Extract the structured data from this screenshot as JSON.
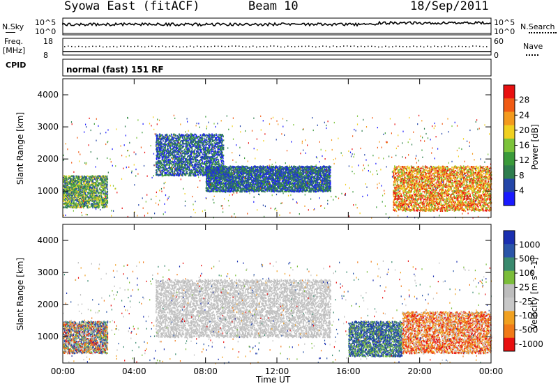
{
  "header": {
    "station": "Syowa East (fitACF)",
    "beam": "Beam 10",
    "date": "18/Sep/2011"
  },
  "top_panels": {
    "nsky_label": "N.Sky",
    "nsearch_label": "N.Search",
    "nsky_ticks": [
      "10^5",
      "10^0"
    ],
    "nsearch_ticks": [
      "10^5",
      "10^0"
    ],
    "freq_label": "Freq.",
    "freq_unit": "[MHz]",
    "freq_ticks": [
      "18",
      "8"
    ],
    "nave_label": "Nave",
    "nave_ticks": [
      "60",
      "0"
    ],
    "cpid_label": "CPID",
    "cpid_value": "normal (fast) 151 RF"
  },
  "colors": {
    "power_scale": [
      "#1a1aff",
      "#2446a8",
      "#2e7d4e",
      "#3a9a3a",
      "#7cc33a",
      "#f0d020",
      "#f39a1e",
      "#f05a14",
      "#e81010"
    ],
    "velocity_scale": [
      "#1a2fb0",
      "#2a55a8",
      "#3a8a6e",
      "#7bbd3a",
      "#bdbdbd",
      "#c8c8c8",
      "#f0a020",
      "#f07a18",
      "#e81010"
    ]
  },
  "chart_data": [
    {
      "type": "heatmap",
      "title": "",
      "xlabel": "",
      "ylabel": "Slant Range [km]",
      "x_ticks": [
        "00:00",
        "04:00",
        "08:00",
        "12:00",
        "16:00",
        "20:00",
        "00:00"
      ],
      "y_ticks": [
        "4000",
        "3000",
        "2000",
        "1000"
      ],
      "ylim": [
        180,
        4500
      ],
      "colorbar": {
        "label": "Power [dB]",
        "ticks": [
          "28",
          "24",
          "20",
          "16",
          "12",
          "8",
          "4"
        ],
        "range": [
          0,
          30
        ]
      },
      "echo_regions": [
        {
          "t0": 0.0,
          "t1": 2.5,
          "r0": 500,
          "r1": 1500,
          "level": "moderate"
        },
        {
          "t0": 5.2,
          "t1": 9.0,
          "r0": 1500,
          "r1": 2800,
          "level": "weak-moderate"
        },
        {
          "t0": 8.0,
          "t1": 15.0,
          "r0": 1000,
          "r1": 1800,
          "level": "weak-moderate"
        },
        {
          "t0": 18.5,
          "t1": 24.0,
          "r0": 400,
          "r1": 1800,
          "level": "strong"
        }
      ]
    },
    {
      "type": "heatmap",
      "title": "",
      "xlabel": "Time UT",
      "ylabel": "Slant Range [km]",
      "x_ticks": [
        "00:00",
        "04:00",
        "08:00",
        "12:00",
        "16:00",
        "20:00",
        "00:00"
      ],
      "y_ticks": [
        "4000",
        "3000",
        "2000",
        "1000"
      ],
      "ylim": [
        180,
        4500
      ],
      "colorbar": {
        "label": "Velocity [m s^-1]",
        "ticks": [
          "1000",
          "500",
          "100",
          "25",
          "-25",
          "-100",
          "-500",
          "-1000"
        ],
        "range": [
          -1000,
          1000
        ]
      },
      "echo_regions": [
        {
          "t0": 0.0,
          "t1": 2.5,
          "r0": 500,
          "r1": 1500,
          "level": "mixed"
        },
        {
          "t0": 5.2,
          "t1": 15.0,
          "r0": 1000,
          "r1": 2800,
          "level": "near-zero"
        },
        {
          "t0": 16.0,
          "t1": 19.0,
          "r0": 400,
          "r1": 1500,
          "level": "positive"
        },
        {
          "t0": 19.0,
          "t1": 24.0,
          "r0": 500,
          "r1": 1800,
          "level": "negative"
        }
      ]
    }
  ]
}
